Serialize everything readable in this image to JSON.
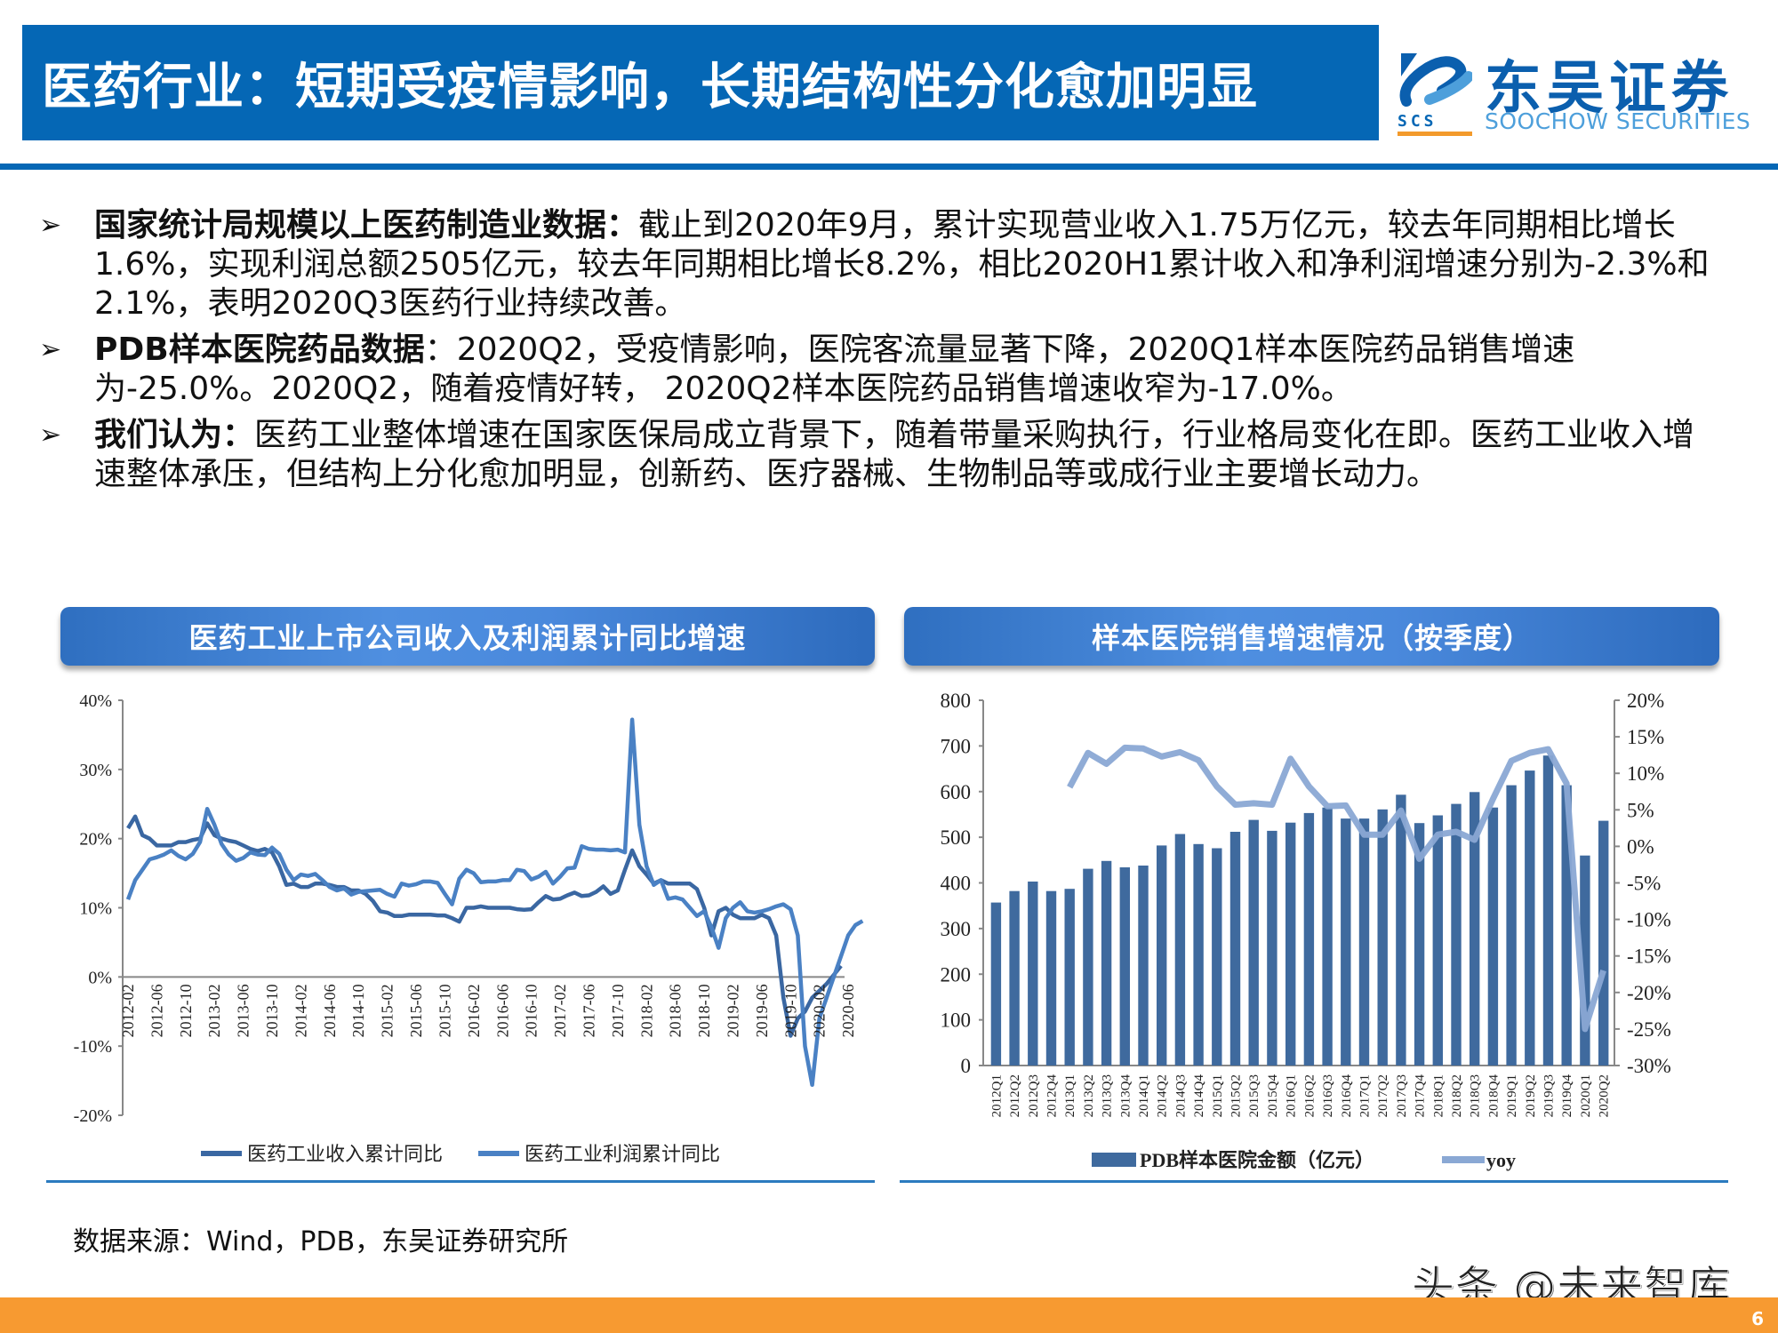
{
  "header": {
    "title": "医药行业：短期受疫情影响，长期结构性分化愈加明显",
    "logo_cn": "东吴证券",
    "logo_en": "SOOCHOW SECURITIES",
    "logo_abbr": "SCS",
    "colors": {
      "banner": "#0567b5",
      "logo_accent": "#f39a2b"
    }
  },
  "bullets": [
    {
      "icon": "arrow-right-icon",
      "glyph": "➢",
      "bold": "国家统计局规模以上医药制造业数据：",
      "text": "截止到2020年9月，累计实现营业收入1.75万亿元，较去年同期相比增长1.6%，实现利润总额2505亿元，较去年同期相比增长8.2%，相比2020H1累计收入和净利润增速分别为-2.3%和2.1%，表明2020Q3医药行业持续改善。"
    },
    {
      "icon": "arrow-right-icon",
      "glyph": "➢",
      "bold": "PDB样本医院药品数据",
      "text": "：2020Q2，受疫情影响，医院客流量显著下降，2020Q1样本医院药品销售增速为-25.0%。2020Q2，随着疫情好转， 2020Q2样本医院药品销售增速收窄为-17.0%。"
    },
    {
      "icon": "arrow-right-icon",
      "glyph": "➢",
      "bold": "我们认为：",
      "text": "医药工业整体增速在国家医保局成立背景下，随着带量采购执行，行业格局变化在即。医药工业收入增速整体承压，但结构上分化愈加明显，创新药、医疗器械、生物制品等或成行业主要增长动力。"
    }
  ],
  "left_chart_header": "医药工业上市公司收入及利润累计同比增速",
  "right_chart_header": "样本医院销售增速情况（按季度）",
  "source": "数据来源：Wind，PDB，东吴证券研究所",
  "watermark": "头条 @未来智库",
  "page_number": "6",
  "chart_data": [
    {
      "type": "line",
      "title": "医药工业上市公司收入及利润累计同比增速",
      "xlabel": "",
      "ylabel": "",
      "ylim": [
        -0.2,
        0.4
      ],
      "yticks": [
        "40%",
        "30%",
        "20%",
        "10%",
        "0%",
        "-10%",
        "-20%"
      ],
      "x_tick_labels": [
        "2012-02",
        "2012-06",
        "2012-10",
        "2013-02",
        "2013-06",
        "2013-10",
        "2014-02",
        "2014-06",
        "2014-10",
        "2015-02",
        "2015-06",
        "2015-10",
        "2016-02",
        "2016-06",
        "2016-10",
        "2017-02",
        "2017-06",
        "2017-10",
        "2018-02",
        "2018-06",
        "2018-10",
        "2019-02",
        "2019-06",
        "2019-10",
        "2020-02",
        "2020-06"
      ],
      "grid": false,
      "legend_position": "bottom",
      "series": [
        {
          "name": "医药工业收入累计同比",
          "color": "#3a67a2",
          "values": [
            0.215,
            0.232,
            0.205,
            0.2,
            0.19,
            0.19,
            0.19,
            0.195,
            0.195,
            0.198,
            0.2,
            0.222,
            0.205,
            0.2,
            0.197,
            0.195,
            0.19,
            0.185,
            0.182,
            0.185,
            0.18,
            0.16,
            0.133,
            0.135,
            0.13,
            0.13,
            0.135,
            0.135,
            0.133,
            0.13,
            0.13,
            0.125,
            0.125,
            0.12,
            0.11,
            0.095,
            0.093,
            0.088,
            0.088,
            0.09,
            0.09,
            0.09,
            0.09,
            0.089,
            0.089,
            0.085,
            0.08,
            0.1,
            0.1,
            0.102,
            0.1,
            0.1,
            0.1,
            0.1,
            0.098,
            0.097,
            0.098,
            0.108,
            0.117,
            0.112,
            0.113,
            0.118,
            0.122,
            0.117,
            0.118,
            0.123,
            0.131,
            0.12,
            0.125,
            0.155,
            0.183,
            0.16,
            0.148,
            0.135,
            0.14,
            0.135,
            0.135,
            0.135,
            0.135,
            0.127,
            0.1,
            0.06,
            0.095,
            0.1,
            0.09,
            0.085,
            0.085,
            0.085,
            0.09,
            0.085,
            0.06,
            -0.03,
            -0.085,
            -0.06,
            -0.05,
            -0.03,
            -0.02,
            -0.01,
            0.003,
            0.016
          ]
        },
        {
          "name": "医药工业利润累计同比",
          "color": "#4a81c4",
          "values": [
            0.112,
            0.14,
            0.155,
            0.17,
            0.173,
            0.177,
            0.183,
            0.175,
            0.17,
            0.178,
            0.195,
            0.243,
            0.22,
            0.192,
            0.177,
            0.168,
            0.172,
            0.18,
            0.177,
            0.176,
            0.187,
            0.178,
            0.155,
            0.14,
            0.148,
            0.146,
            0.149,
            0.14,
            0.13,
            0.125,
            0.128,
            0.119,
            0.123,
            0.124,
            0.125,
            0.126,
            0.12,
            0.116,
            0.135,
            0.132,
            0.134,
            0.138,
            0.138,
            0.136,
            0.12,
            0.105,
            0.142,
            0.155,
            0.15,
            0.137,
            0.138,
            0.138,
            0.14,
            0.14,
            0.155,
            0.153,
            0.141,
            0.145,
            0.152,
            0.135,
            0.145,
            0.157,
            0.158,
            0.189,
            0.185,
            0.184,
            0.184,
            0.183,
            0.184,
            0.18,
            0.372,
            0.22,
            0.16,
            0.133,
            0.14,
            0.113,
            0.115,
            0.112,
            0.1,
            0.088,
            0.095,
            0.072,
            0.042,
            0.085,
            0.1,
            0.108,
            0.095,
            0.093,
            0.095,
            0.098,
            0.102,
            0.105,
            0.098,
            0.06,
            -0.1,
            -0.156,
            -0.06,
            -0.03,
            0.0,
            0.03,
            0.06,
            0.075,
            0.081
          ]
        }
      ]
    },
    {
      "type": "bar",
      "title": "样本医院销售增速情况（按季度）",
      "xlabel": "",
      "ylabel": "",
      "ylim": [
        0,
        800
      ],
      "y2lim": [
        -0.3,
        0.2
      ],
      "yticks": [
        "800",
        "700",
        "600",
        "500",
        "400",
        "300",
        "200",
        "100",
        "0"
      ],
      "y2ticks": [
        "20%",
        "15%",
        "10%",
        "5%",
        "0%",
        "-5%",
        "-10%",
        "-15%",
        "-20%",
        "-25%",
        "-30%"
      ],
      "legend_position": "bottom",
      "categories": [
        "2012Q1",
        "2012Q2",
        "2012Q3",
        "2012Q4",
        "2013Q1",
        "2013Q2",
        "2013Q3",
        "2013Q4",
        "2014Q1",
        "2014Q2",
        "2014Q3",
        "2014Q4",
        "2015Q1",
        "2015Q2",
        "2015Q3",
        "2015Q4",
        "2016Q1",
        "2016Q2",
        "2016Q3",
        "2016Q4",
        "2017Q1",
        "2017Q2",
        "2017Q3",
        "2017Q4",
        "2018Q1",
        "2018Q2",
        "2018Q3",
        "2018Q4",
        "2019Q1",
        "2019Q2",
        "2019Q3",
        "2019Q4",
        "2020Q1",
        "2020Q2"
      ],
      "series": [
        {
          "name": "PDB样本医院金额（亿元）",
          "type": "bar",
          "color": "#3f6a9e",
          "axis": "left",
          "values": [
            357,
            382,
            403,
            382,
            387,
            431,
            448,
            434,
            438,
            482,
            507,
            485,
            476,
            512,
            538,
            514,
            532,
            553,
            565,
            541,
            541,
            561,
            593,
            531,
            548,
            573,
            599,
            565,
            614,
            646,
            679,
            614,
            460,
            536
          ]
        },
        {
          "name": "yoy",
          "type": "line",
          "color": "#8aa8d4",
          "axis": "right",
          "values": [
            null,
            null,
            null,
            null,
            0.081,
            0.128,
            0.113,
            0.135,
            0.134,
            0.123,
            0.129,
            0.118,
            0.082,
            0.057,
            0.059,
            0.057,
            0.12,
            0.082,
            0.055,
            0.056,
            0.016,
            0.016,
            0.049,
            -0.017,
            0.016,
            0.02,
            0.009,
            0.065,
            0.117,
            0.128,
            0.133,
            0.086,
            -0.25,
            -0.17
          ]
        }
      ]
    }
  ]
}
